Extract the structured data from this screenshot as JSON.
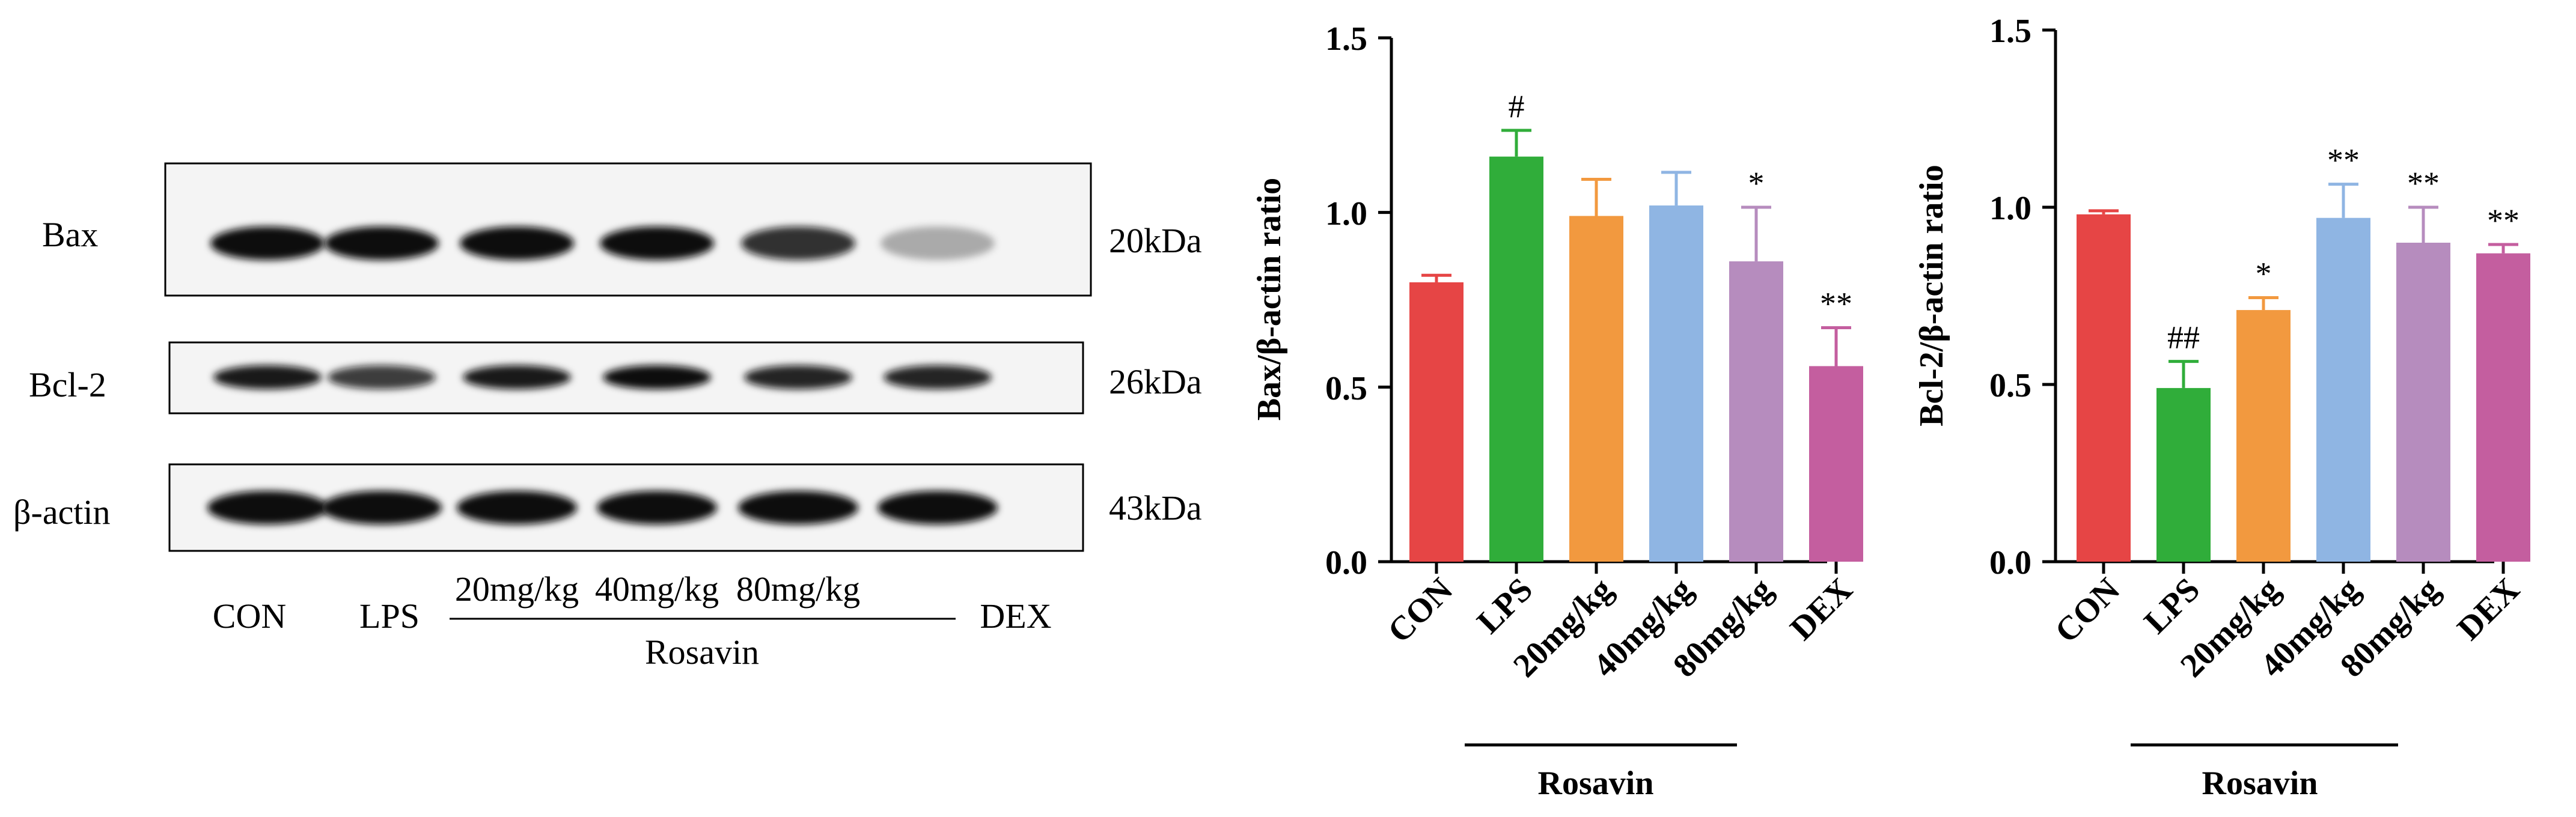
{
  "blot": {
    "rows": [
      {
        "label": "Bax",
        "size": "20kDa",
        "intensity": [
          1.0,
          1.0,
          1.0,
          1.0,
          0.85,
          0.3
        ]
      },
      {
        "label": "Bcl-2",
        "size": "26kDa",
        "intensity": [
          0.95,
          0.8,
          0.95,
          1.0,
          0.9,
          0.9
        ]
      },
      {
        "label": "β-actin",
        "size": "43kDa",
        "intensity": [
          1.0,
          1.0,
          1.0,
          1.0,
          1.0,
          1.0
        ]
      }
    ],
    "lanes": [
      "CON",
      "LPS",
      "20mg/kg",
      "40mg/kg",
      "80mg/kg",
      "DEX"
    ],
    "group_label": "Rosavin"
  },
  "chart_data": [
    {
      "type": "bar",
      "categories": [
        "CON",
        "LPS",
        "20mg/kg",
        "40mg/kg",
        "80mg/kg",
        "DEX"
      ],
      "values": [
        0.8,
        1.16,
        0.99,
        1.02,
        0.86,
        0.56
      ],
      "errors": [
        0.02,
        0.075,
        0.105,
        0.095,
        0.155,
        0.11
      ],
      "significance": [
        "",
        "#",
        "",
        "",
        "*",
        "**"
      ],
      "colors": [
        "#e64545",
        "#30ad3a",
        "#f2993f",
        "#8fb5e3",
        "#b68cbe",
        "#c45e9f"
      ],
      "ylabel": "Bax/β-actin ratio",
      "ylim": [
        0,
        1.5
      ],
      "yticks": [
        "0.0",
        "0.5",
        "1.0",
        "1.5"
      ],
      "group_label": "Rosavin"
    },
    {
      "type": "bar",
      "categories": [
        "CON",
        "LPS",
        "20mg/kg",
        "40mg/kg",
        "80mg/kg",
        "DEX"
      ],
      "values": [
        0.98,
        0.49,
        0.71,
        0.97,
        0.9,
        0.87
      ],
      "errors": [
        0.01,
        0.075,
        0.035,
        0.095,
        0.1,
        0.025
      ],
      "significance": [
        "",
        "##",
        "*",
        "**",
        "**",
        "**"
      ],
      "colors": [
        "#e64545",
        "#30ad3a",
        "#f2993f",
        "#8fb5e3",
        "#b68cbe",
        "#c45e9f"
      ],
      "ylabel": "Bcl-2/β-actin ratio",
      "ylim": [
        0,
        1.5
      ],
      "yticks": [
        "0.0",
        "0.5",
        "1.0",
        "1.5"
      ],
      "group_label": "Rosavin"
    }
  ]
}
